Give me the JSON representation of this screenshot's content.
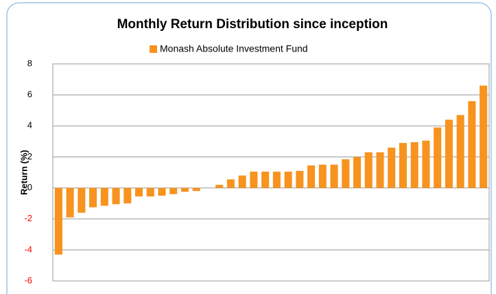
{
  "chart_data": {
    "type": "bar",
    "title": "Monthly Return Distribution since inception",
    "y_label": "Return (%)",
    "series": [
      {
        "name": "Monash Absolute Investment Fund",
        "color": "#f7931e",
        "values": [
          -4.3,
          -1.9,
          -1.6,
          -1.25,
          -1.15,
          -1.05,
          -1.0,
          -0.55,
          -0.55,
          -0.5,
          -0.4,
          -0.25,
          -0.2,
          0,
          0.2,
          0.55,
          0.8,
          1.05,
          1.05,
          1.05,
          1.05,
          1.1,
          1.45,
          1.5,
          1.5,
          1.85,
          2.0,
          2.3,
          2.3,
          2.6,
          2.9,
          2.95,
          3.05,
          3.9,
          4.4,
          4.7,
          5.6,
          6.6
        ]
      }
    ],
    "ylim": [
      -6,
      8
    ],
    "yticks": [
      -6,
      -4,
      -2,
      0,
      2,
      4,
      6,
      8
    ],
    "grid": true,
    "legend": "top",
    "tick_color": "#000000",
    "negative_tick_color": "#ff0000"
  }
}
